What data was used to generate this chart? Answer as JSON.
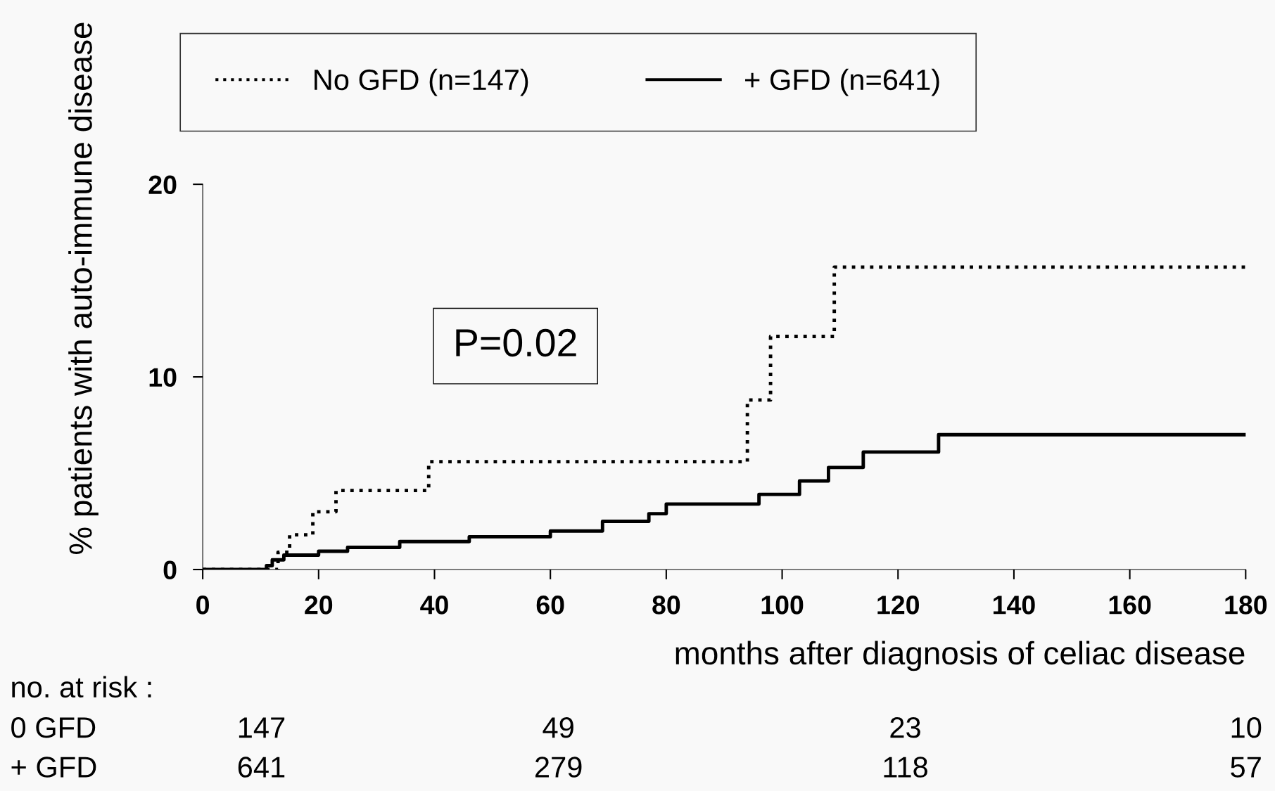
{
  "chart_data": {
    "type": "step",
    "xlabel": "months after diagnosis of celiac disease",
    "ylabel": "% patients with auto-immune disease",
    "xlim": [
      0,
      180
    ],
    "xticks": [
      0,
      20,
      40,
      60,
      80,
      100,
      120,
      140,
      160,
      180
    ],
    "ylim": [
      0,
      20
    ],
    "yticks": [
      0,
      10,
      20
    ],
    "grid": false,
    "legend": "top",
    "series": [
      {
        "name": "No GFD (n=147)",
        "color": "#000000",
        "line_style": "dotted",
        "x": [
          0,
          13,
          15,
          19,
          23,
          39,
          94,
          98,
          109,
          180
        ],
        "values": [
          0,
          0.9,
          1.8,
          3.0,
          4.1,
          5.6,
          8.8,
          12.1,
          15.7,
          15.7
        ]
      },
      {
        "name": "+ GFD (n=641)",
        "color": "#000000",
        "line_style": "solid",
        "x": [
          0,
          11,
          12,
          14,
          20,
          25,
          34,
          46,
          60,
          69,
          77,
          80,
          96,
          103,
          108,
          114,
          127,
          180
        ],
        "values": [
          0,
          0.2,
          0.5,
          0.75,
          0.95,
          1.15,
          1.45,
          1.7,
          2.0,
          2.5,
          2.9,
          3.4,
          3.9,
          4.6,
          5.3,
          6.1,
          7.0,
          7.0
        ]
      }
    ],
    "annotations": [
      "P=0.02",
      "no. at risk :",
      "0 GFD",
      "147",
      "49",
      "23",
      "10",
      "+ GFD",
      "641",
      "279",
      "118",
      "57"
    ]
  }
}
